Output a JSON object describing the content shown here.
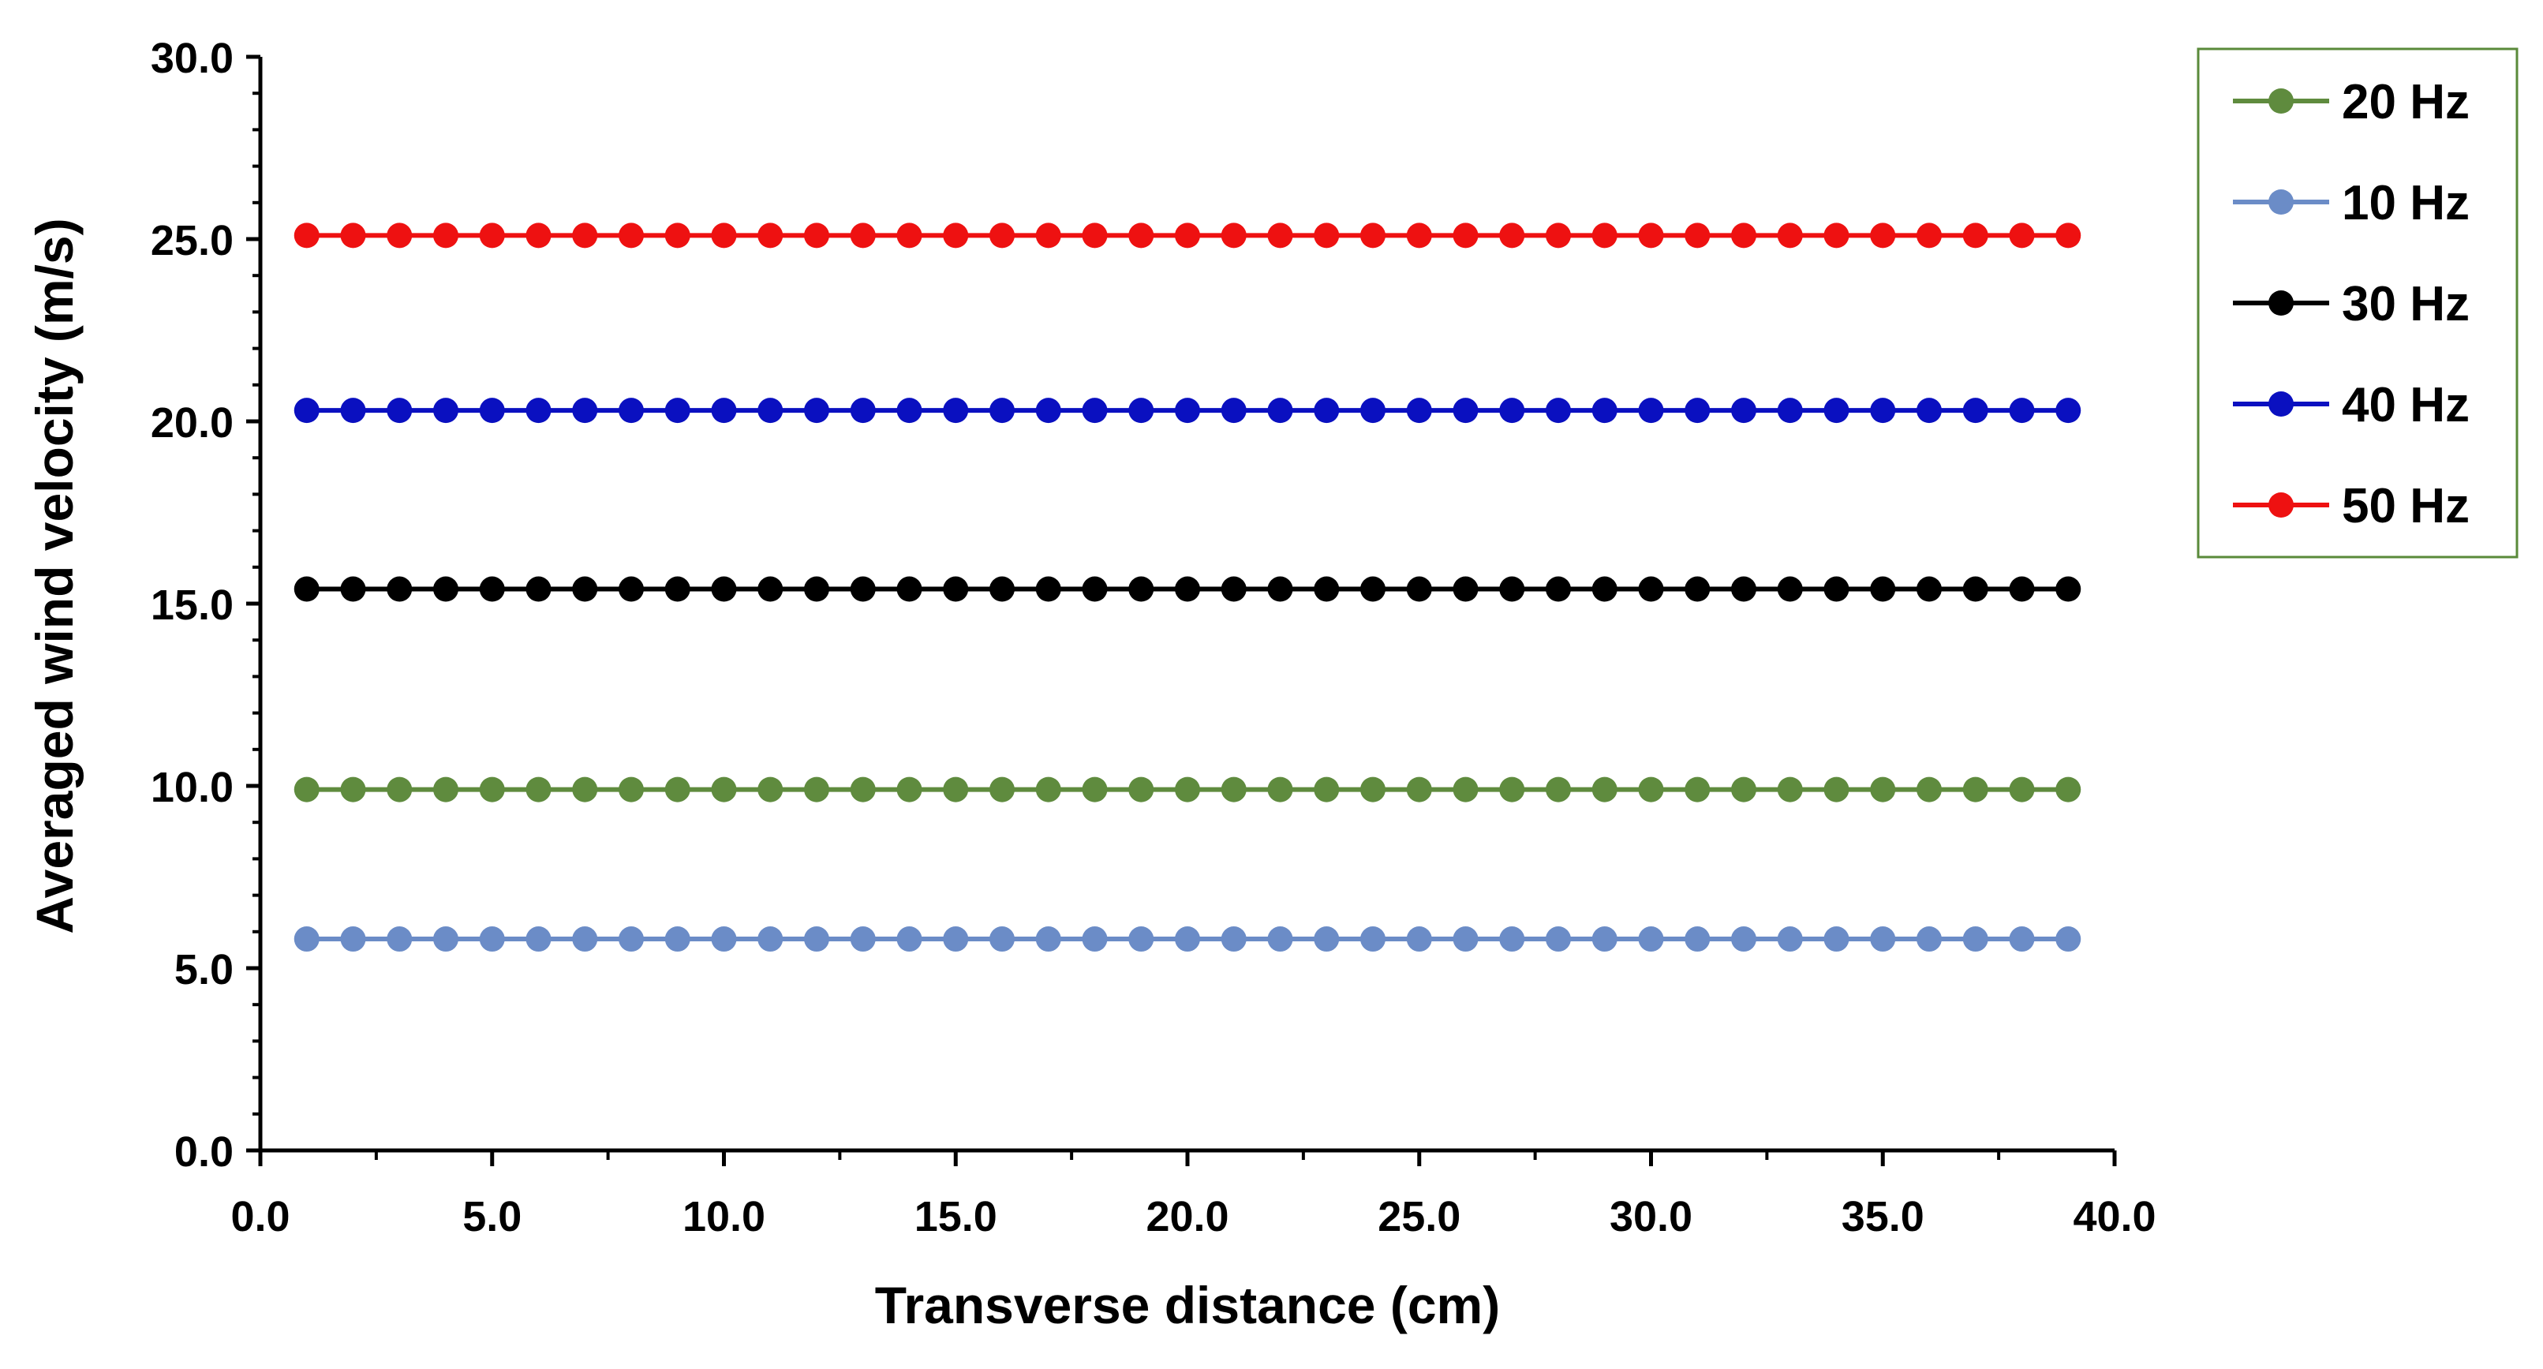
{
  "chart_data": {
    "type": "line",
    "title": "",
    "xlabel": "Transverse distance (cm)",
    "ylabel": "Averaged wind velocity (m/s)",
    "xlim": [
      0,
      40
    ],
    "ylim": [
      0,
      30
    ],
    "x_ticks": [
      "0.0",
      "5.0",
      "10.0",
      "15.0",
      "20.0",
      "25.0",
      "30.0",
      "35.0",
      "40.0"
    ],
    "y_ticks": [
      "0.0",
      "5.0",
      "10.0",
      "15.0",
      "20.0",
      "25.0",
      "30.0"
    ],
    "grid": false,
    "legend_position": "top-right",
    "x": [
      1,
      2,
      3,
      4,
      5,
      6,
      7,
      8,
      9,
      10,
      11,
      12,
      13,
      14,
      15,
      16,
      17,
      18,
      19,
      20,
      21,
      22,
      23,
      24,
      25,
      26,
      27,
      28,
      29,
      30,
      31,
      32,
      33,
      34,
      35,
      36,
      37,
      38,
      39
    ],
    "series": [
      {
        "name": "20 Hz",
        "color": "#5f8b3e",
        "value": 9.9
      },
      {
        "name": "10 Hz",
        "color": "#6b8cc7",
        "value": 5.8
      },
      {
        "name": "30 Hz",
        "color": "#000000",
        "value": 15.4
      },
      {
        "name": "40 Hz",
        "color": "#0a10c0",
        "value": 20.3
      },
      {
        "name": "50 Hz",
        "color": "#ee1111",
        "value": 25.1
      }
    ]
  }
}
